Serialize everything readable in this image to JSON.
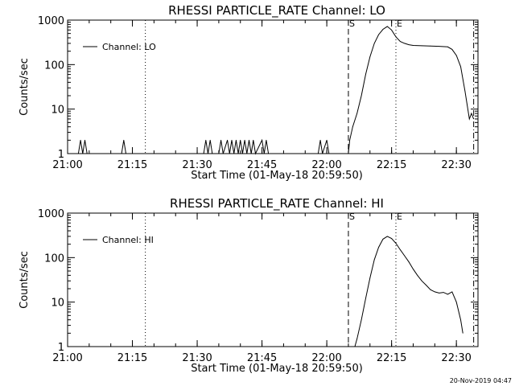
{
  "footer_timestamp": "20-Nov-2019 04:47",
  "chart_data": [
    {
      "type": "line",
      "title": "RHESSI PARTICLE_RATE Channel: LO",
      "xlabel": "Start Time (01-May-18 20:59:50)",
      "ylabel": "Counts/sec",
      "yscale": "log",
      "ylim": [
        1,
        1000
      ],
      "xlim": [
        "21:00",
        "22:35"
      ],
      "xticks": [
        "21:00",
        "21:15",
        "21:30",
        "21:45",
        "22:00",
        "22:15",
        "22:30"
      ],
      "yticks": [
        "1",
        "10",
        "100",
        "1000"
      ],
      "legend": {
        "label": "Channel: LO",
        "placement": "top-left"
      },
      "markers": [
        {
          "time": "21:18",
          "style": "dotted",
          "label": ""
        },
        {
          "time": "22:05",
          "style": "dashed",
          "label": "S"
        },
        {
          "time": "22:16",
          "style": "dotted",
          "label": "E"
        },
        {
          "time": "22:34",
          "style": "dash-dot",
          "label": ""
        }
      ],
      "series": [
        {
          "name": "Channel: LO",
          "points": [
            [
              "21:00",
              1
            ],
            [
              "21:02.5",
              1
            ],
            [
              "21:03",
              2
            ],
            [
              "21:03.5",
              1
            ],
            [
              "21:04",
              2
            ],
            [
              "21:04.5",
              1
            ],
            [
              "21:12.5",
              1
            ],
            [
              "21:13",
              2
            ],
            [
              "21:13.5",
              1
            ],
            [
              "21:31.5",
              1
            ],
            [
              "21:32",
              2
            ],
            [
              "21:32.5",
              1
            ],
            [
              "21:33",
              2
            ],
            [
              "21:33.5",
              1
            ],
            [
              "21:35",
              1
            ],
            [
              "21:35.5",
              2
            ],
            [
              "21:36",
              1
            ],
            [
              "21:37",
              2
            ],
            [
              "21:37.5",
              1
            ],
            [
              "21:38",
              2
            ],
            [
              "21:38.5",
              1
            ],
            [
              "21:39",
              2
            ],
            [
              "21:39.5",
              1
            ],
            [
              "21:40",
              2
            ],
            [
              "21:40.5",
              1
            ],
            [
              "21:41",
              2
            ],
            [
              "21:41.5",
              1
            ],
            [
              "21:42",
              2
            ],
            [
              "21:42.5",
              1
            ],
            [
              "21:43",
              2
            ],
            [
              "21:43.5",
              1
            ],
            [
              "21:45",
              2
            ],
            [
              "21:45.5",
              1
            ],
            [
              "21:46",
              2
            ],
            [
              "21:46.5",
              1
            ],
            [
              "21:58",
              1
            ],
            [
              "21:58.5",
              2
            ],
            [
              "21:59",
              1
            ],
            [
              "22:00",
              2
            ],
            [
              "22:00.5",
              1
            ],
            [
              "22:05",
              1
            ],
            [
              "22:05.3",
              2
            ],
            [
              "22:06",
              4
            ],
            [
              "22:07",
              8
            ],
            [
              "22:08",
              20
            ],
            [
              "22:09",
              60
            ],
            [
              "22:10",
              150
            ],
            [
              "22:11",
              300
            ],
            [
              "22:12",
              470
            ],
            [
              "22:13",
              620
            ],
            [
              "22:14",
              720
            ],
            [
              "22:15",
              600
            ],
            [
              "22:16",
              420
            ],
            [
              "22:17",
              330
            ],
            [
              "22:18",
              300
            ],
            [
              "22:19",
              280
            ],
            [
              "22:20",
              270
            ],
            [
              "22:22",
              265
            ],
            [
              "22:24",
              262
            ],
            [
              "22:26",
              258
            ],
            [
              "22:28",
              250
            ],
            [
              "22:29",
              220
            ],
            [
              "22:30",
              160
            ],
            [
              "22:31",
              90
            ],
            [
              "22:32",
              25
            ],
            [
              "22:33",
              6
            ],
            [
              "22:33.5",
              8
            ],
            [
              "22:34",
              6
            ]
          ]
        }
      ]
    },
    {
      "type": "line",
      "title": "RHESSI PARTICLE_RATE Channel: HI",
      "xlabel": "Start Time (01-May-18 20:59:50)",
      "ylabel": "Counts/sec",
      "yscale": "log",
      "ylim": [
        1,
        1000
      ],
      "xlim": [
        "21:00",
        "22:35"
      ],
      "xticks": [
        "21:00",
        "21:15",
        "21:30",
        "21:45",
        "22:00",
        "22:15",
        "22:30"
      ],
      "yticks": [
        "1",
        "10",
        "100",
        "1000"
      ],
      "legend": {
        "label": "Channel: HI",
        "placement": "top-left"
      },
      "markers": [
        {
          "time": "21:18",
          "style": "dotted",
          "label": ""
        },
        {
          "time": "22:05",
          "style": "dashed",
          "label": "S"
        },
        {
          "time": "22:16",
          "style": "dotted",
          "label": "E"
        },
        {
          "time": "22:34",
          "style": "dash-dot",
          "label": ""
        }
      ],
      "series": [
        {
          "name": "Channel: HI",
          "points": [
            [
              "22:06.5",
              1
            ],
            [
              "22:07",
              1.5
            ],
            [
              "22:08",
              4
            ],
            [
              "22:09",
              12
            ],
            [
              "22:10",
              35
            ],
            [
              "22:11",
              90
            ],
            [
              "22:12",
              170
            ],
            [
              "22:13",
              260
            ],
            [
              "22:14",
              300
            ],
            [
              "22:15",
              270
            ],
            [
              "22:16",
              210
            ],
            [
              "22:17",
              150
            ],
            [
              "22:18",
              110
            ],
            [
              "22:19",
              80
            ],
            [
              "22:20",
              55
            ],
            [
              "22:21",
              40
            ],
            [
              "22:22",
              30
            ],
            [
              "22:23",
              24
            ],
            [
              "22:24",
              19
            ],
            [
              "22:25",
              17
            ],
            [
              "22:26",
              16
            ],
            [
              "22:27",
              16.5
            ],
            [
              "22:28",
              15
            ],
            [
              "22:29",
              17
            ],
            [
              "22:30",
              10
            ],
            [
              "22:31",
              4
            ],
            [
              "22:31.5",
              2
            ]
          ]
        }
      ]
    }
  ]
}
